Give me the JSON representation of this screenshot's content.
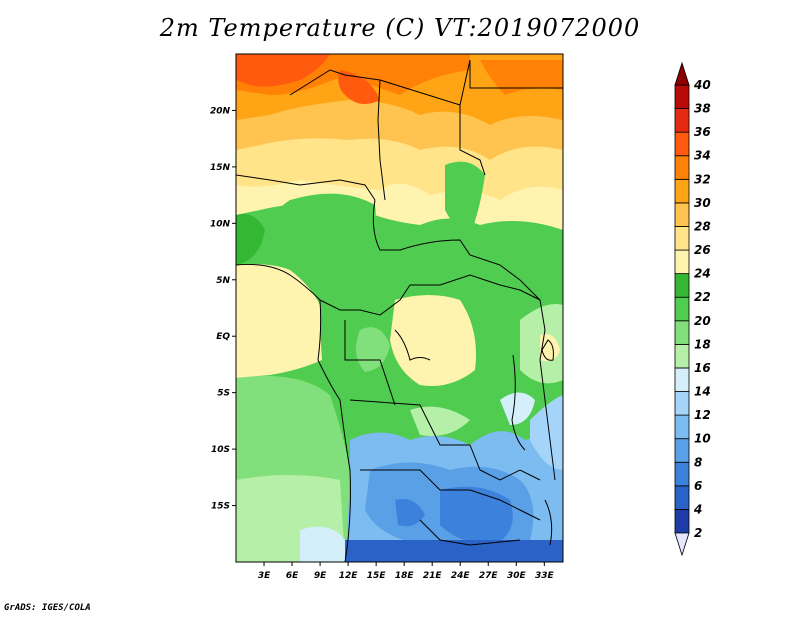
{
  "title": "2m Temperature (C) VT:2019072000",
  "credit": "GrADS: IGES/COLA",
  "map": {
    "lon_range": [
      0,
      35
    ],
    "lat_range": [
      -20,
      25
    ],
    "lon_ticks": [
      {
        "value": 3,
        "label": "3E"
      },
      {
        "value": 6,
        "label": "6E"
      },
      {
        "value": 9,
        "label": "9E"
      },
      {
        "value": 12,
        "label": "12E"
      },
      {
        "value": 15,
        "label": "15E"
      },
      {
        "value": 18,
        "label": "18E"
      },
      {
        "value": 21,
        "label": "21E"
      },
      {
        "value": 24,
        "label": "24E"
      },
      {
        "value": 27,
        "label": "27E"
      },
      {
        "value": 30,
        "label": "30E"
      },
      {
        "value": 33,
        "label": "33E"
      }
    ],
    "lat_ticks": [
      {
        "value": 20,
        "label": "20N"
      },
      {
        "value": 15,
        "label": "15N"
      },
      {
        "value": 10,
        "label": "10N"
      },
      {
        "value": 5,
        "label": "5N"
      },
      {
        "value": 0,
        "label": "EQ"
      },
      {
        "value": -5,
        "label": "5S"
      },
      {
        "value": -10,
        "label": "10S"
      },
      {
        "value": -15,
        "label": "15S"
      }
    ]
  },
  "colorbar": {
    "levels": [
      "2",
      "4",
      "6",
      "8",
      "10",
      "12",
      "14",
      "16",
      "18",
      "20",
      "22",
      "24",
      "26",
      "28",
      "30",
      "32",
      "34",
      "36",
      "38",
      "40"
    ],
    "colors": [
      "#1a1a80",
      "#1e3ca8",
      "#2a62c8",
      "#3c82dc",
      "#5aa0e6",
      "#7cbcf0",
      "#a4d4f8",
      "#d4eefa",
      "#b6f0a8",
      "#82e07c",
      "#50cc50",
      "#34b834",
      "#fff3b0",
      "#ffe48a",
      "#ffc450",
      "#ffa414",
      "#ff8206",
      "#ff5a0e",
      "#e42a10",
      "#b80a08",
      "#8c0000"
    ],
    "under_color": "#e6e6ff",
    "over_color": "#8c0000"
  }
}
